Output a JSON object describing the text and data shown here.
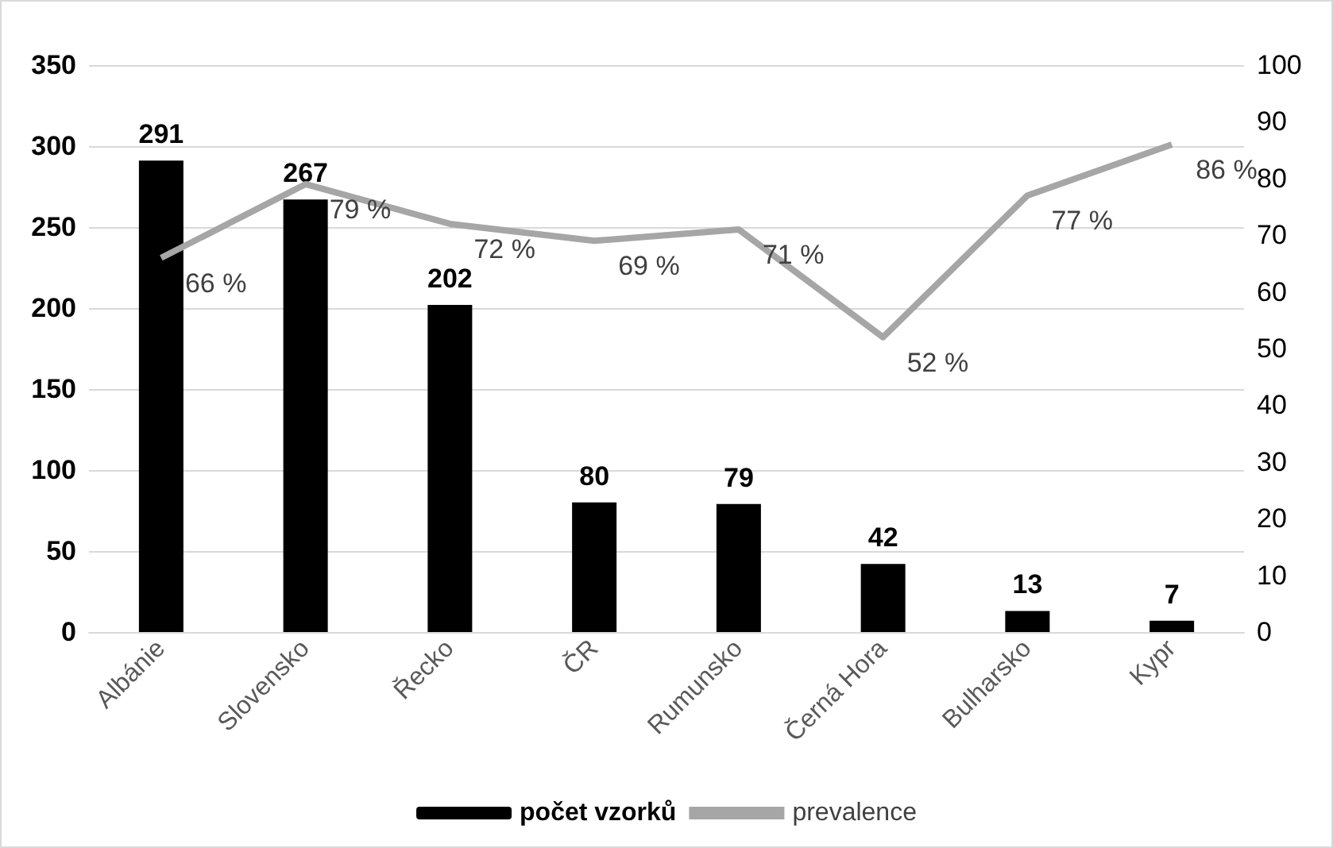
{
  "chart_data": {
    "type": "bar",
    "categories": [
      "Albánie",
      "Slovensko",
      "Řecko",
      "ČR",
      "Rumunsko",
      "Černá Hora",
      "Bulharsko",
      "Kypr"
    ],
    "series": [
      {
        "name": "počet vzorků",
        "color": "#000000",
        "values": [
          291,
          267,
          202,
          80,
          79,
          42,
          13,
          7
        ],
        "value_labels": [
          "291",
          "267",
          "202",
          "80",
          "79",
          "42",
          "13",
          "7"
        ]
      },
      {
        "name": "prevalence",
        "type": "line",
        "axis": "y2",
        "color": "#a6a6a6",
        "values": [
          66,
          79,
          72,
          69,
          71,
          52,
          77,
          86
        ],
        "value_labels": [
          "66 %",
          "79 %",
          "72 %",
          "69 %",
          "71 %",
          "52 %",
          "77 %",
          "86 %"
        ]
      }
    ],
    "ylim": [
      0,
      350
    ],
    "yticks": [
      0,
      50,
      100,
      150,
      200,
      250,
      300,
      350
    ],
    "y2lim": [
      0,
      100
    ],
    "y2ticks": [
      0,
      10,
      20,
      30,
      40,
      50,
      60,
      70,
      80,
      90,
      100
    ],
    "grid": "y",
    "legend": "bottom",
    "marker": "none"
  }
}
